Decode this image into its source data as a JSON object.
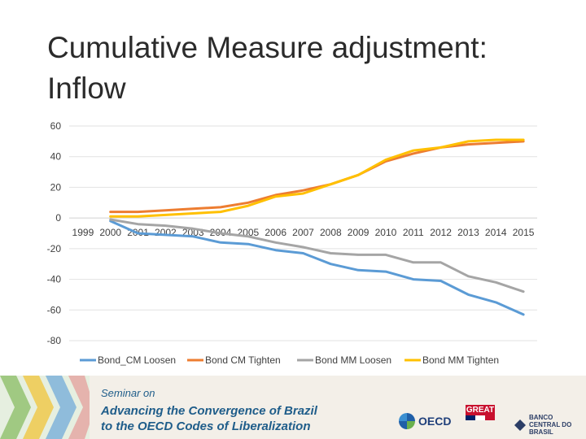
{
  "title": "Cumulative Measure adjustment: Inflow",
  "chart_data": {
    "type": "line",
    "x": [
      "1999",
      "2000",
      "2001",
      "2002",
      "2003",
      "2004",
      "2005",
      "2006",
      "2007",
      "2008",
      "2009",
      "2010",
      "2011",
      "2012",
      "2013",
      "2014",
      "2015"
    ],
    "ylim": [
      -80,
      60
    ],
    "yticks": [
      60,
      40,
      20,
      0,
      -20,
      -40,
      -60,
      -80
    ],
    "grid": true,
    "legend_position": "bottom",
    "series": [
      {
        "name": "Bond_CM Loosen",
        "color": "#5b9bd5",
        "values": [
          null,
          -2,
          -10,
          -11,
          -12,
          -16,
          -17,
          -21,
          -23,
          -30,
          -34,
          -35,
          -40,
          -41,
          -50,
          -55,
          -63
        ]
      },
      {
        "name": "Bond CM  Tighten",
        "color": "#ed7d31",
        "values": [
          null,
          4,
          4,
          5,
          6,
          7,
          10,
          15,
          18,
          22,
          28,
          37,
          42,
          46,
          48,
          49,
          50
        ]
      },
      {
        "name": "Bond MM Loosen",
        "color": "#a5a5a5",
        "values": [
          null,
          -1,
          -4,
          -5,
          -7,
          -10,
          -12,
          -16,
          -19,
          -23,
          -24,
          -24,
          -29,
          -29,
          -38,
          -42,
          -48
        ]
      },
      {
        "name": "Bond MM Tighten",
        "color": "#ffc000",
        "values": [
          null,
          1,
          1,
          2,
          3,
          4,
          8,
          14,
          16,
          22,
          28,
          38,
          44,
          46,
          50,
          51,
          51
        ]
      }
    ]
  },
  "banner": {
    "seminar_on": "Seminar on",
    "line1": "Advancing the Convergence of Brazil",
    "line2": "to the OECD Codes of Liberalization",
    "oecd": "OECD",
    "great": "GREAT",
    "bcb": "BANCO CENTRAL DO BRASIL"
  }
}
